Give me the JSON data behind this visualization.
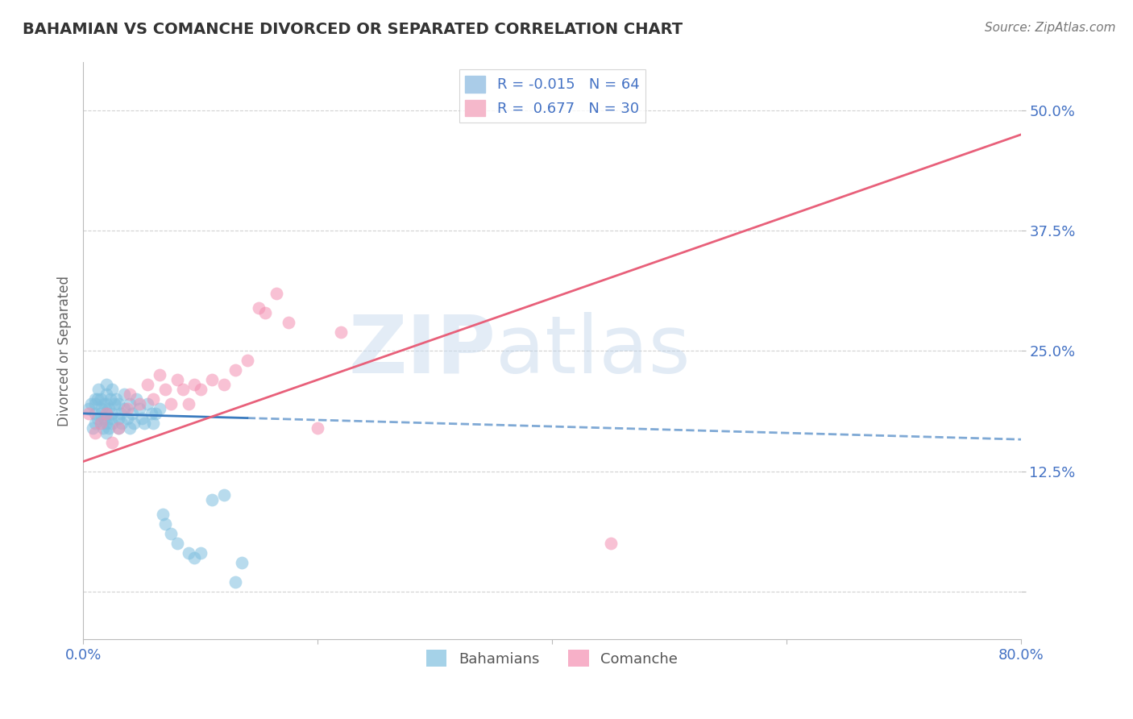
{
  "title": "BAHAMIAN VS COMANCHE DIVORCED OR SEPARATED CORRELATION CHART",
  "source": "Source: ZipAtlas.com",
  "ylabel": "Divorced or Separated",
  "xlim": [
    0.0,
    0.8
  ],
  "ylim": [
    -0.05,
    0.55
  ],
  "yticks": [
    0.0,
    0.125,
    0.25,
    0.375,
    0.5
  ],
  "ytick_labels": [
    "",
    "12.5%",
    "25.0%",
    "37.5%",
    "50.0%"
  ],
  "xticks": [
    0.0,
    0.2,
    0.4,
    0.6,
    0.8
  ],
  "xtick_labels": [
    "0.0%",
    "",
    "",
    "",
    "80.0%"
  ],
  "grid_color": "#cccccc",
  "background_color": "#ffffff",
  "legend_R_blue": "-0.015",
  "legend_N_blue": "64",
  "legend_R_pink": "0.677",
  "legend_N_pink": "30",
  "blue_color": "#7fbfdf",
  "pink_color": "#f48fb1",
  "blue_line_color": "#3a7bbf",
  "pink_line_color": "#e8607a",
  "watermark_zip": "ZIP",
  "watermark_atlas": "atlas",
  "blue_points_x": [
    0.005,
    0.007,
    0.008,
    0.01,
    0.01,
    0.01,
    0.01,
    0.012,
    0.012,
    0.013,
    0.015,
    0.015,
    0.015,
    0.016,
    0.017,
    0.018,
    0.018,
    0.02,
    0.02,
    0.02,
    0.02,
    0.02,
    0.02,
    0.022,
    0.022,
    0.023,
    0.023,
    0.025,
    0.025,
    0.025,
    0.027,
    0.028,
    0.03,
    0.03,
    0.03,
    0.032,
    0.033,
    0.035,
    0.035,
    0.038,
    0.04,
    0.04,
    0.042,
    0.043,
    0.045,
    0.048,
    0.05,
    0.052,
    0.055,
    0.058,
    0.06,
    0.062,
    0.065,
    0.068,
    0.07,
    0.075,
    0.08,
    0.09,
    0.095,
    0.1,
    0.11,
    0.12,
    0.13,
    0.135
  ],
  "blue_points_y": [
    0.19,
    0.195,
    0.17,
    0.175,
    0.185,
    0.195,
    0.2,
    0.18,
    0.2,
    0.21,
    0.175,
    0.185,
    0.2,
    0.19,
    0.17,
    0.18,
    0.195,
    0.165,
    0.175,
    0.185,
    0.195,
    0.205,
    0.215,
    0.17,
    0.19,
    0.18,
    0.2,
    0.175,
    0.185,
    0.21,
    0.195,
    0.2,
    0.17,
    0.18,
    0.195,
    0.185,
    0.175,
    0.19,
    0.205,
    0.18,
    0.17,
    0.195,
    0.185,
    0.175,
    0.2,
    0.19,
    0.18,
    0.175,
    0.195,
    0.185,
    0.175,
    0.185,
    0.19,
    0.08,
    0.07,
    0.06,
    0.05,
    0.04,
    0.035,
    0.04,
    0.095,
    0.1,
    0.01,
    0.03
  ],
  "pink_points_x": [
    0.005,
    0.01,
    0.015,
    0.02,
    0.025,
    0.03,
    0.038,
    0.04,
    0.048,
    0.055,
    0.06,
    0.065,
    0.07,
    0.075,
    0.08,
    0.085,
    0.09,
    0.095,
    0.1,
    0.11,
    0.12,
    0.13,
    0.14,
    0.15,
    0.155,
    0.165,
    0.175,
    0.2,
    0.22,
    0.45
  ],
  "pink_points_y": [
    0.185,
    0.165,
    0.175,
    0.185,
    0.155,
    0.17,
    0.19,
    0.205,
    0.195,
    0.215,
    0.2,
    0.225,
    0.21,
    0.195,
    0.22,
    0.21,
    0.195,
    0.215,
    0.21,
    0.22,
    0.215,
    0.23,
    0.24,
    0.295,
    0.29,
    0.31,
    0.28,
    0.17,
    0.27,
    0.05
  ],
  "blue_trend_start_x": 0.0,
  "blue_trend_start_y": 0.185,
  "blue_trend_end_x": 0.8,
  "blue_trend_end_y": 0.158,
  "blue_trend_solid_end_x": 0.14,
  "pink_trend_start_x": 0.0,
  "pink_trend_start_y": 0.135,
  "pink_trend_end_x": 0.8,
  "pink_trend_end_y": 0.475
}
